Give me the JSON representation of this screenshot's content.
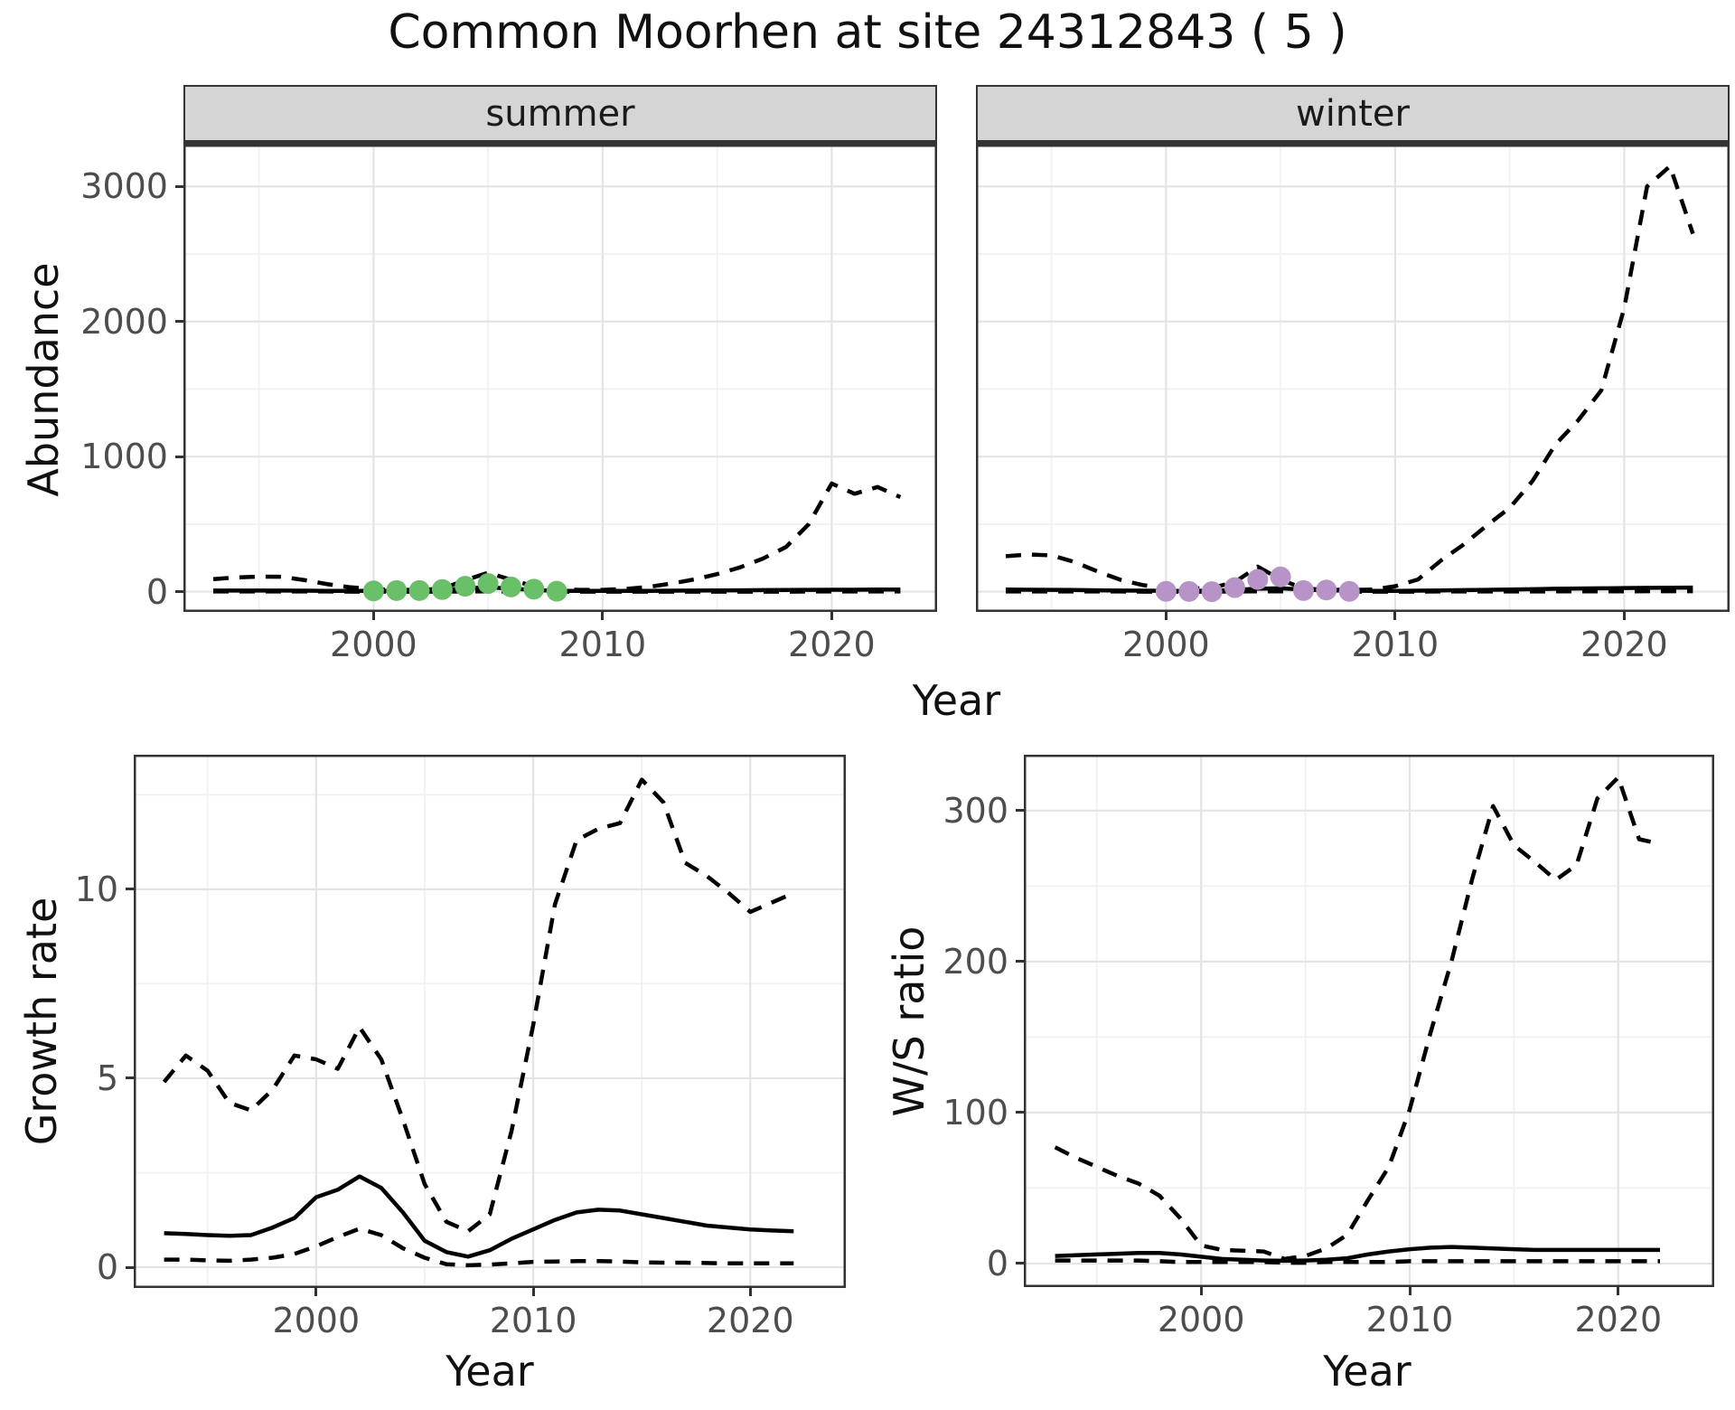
{
  "title": "Common Moorhen at site 24312843 ( 5 )",
  "facets": [
    "summer",
    "winter"
  ],
  "labels": {
    "abundance": "Abundance",
    "year": "Year",
    "growth_rate": "Growth rate",
    "ws_ratio": "W/S ratio"
  },
  "colors": {
    "summer_points": "#6abf69",
    "winter_points": "#b793c7",
    "line": "#000000",
    "grid_major": "#e4e4e4",
    "grid_minor": "#f1f1f1",
    "panel_border": "#333333",
    "strip_bg": "#d5d5d5",
    "tick_text": "#4d4d4d"
  },
  "chart_data": [
    {
      "type": "line",
      "id": "abundance-summer",
      "facet": "summer",
      "ylabel": "Abundance",
      "xlabel": "Year",
      "xlim": [
        1991.7,
        2024.6
      ],
      "ylim": [
        -150,
        3310
      ],
      "xticks": [
        2000,
        2010,
        2020
      ],
      "xminor": [
        1995,
        2005,
        2015
      ],
      "yticks": [
        0,
        1000,
        2000,
        3000
      ],
      "yminor": [
        500,
        1500,
        2500
      ],
      "show_ytick_labels": true,
      "x": [
        1993,
        1994,
        1995,
        1996,
        1997,
        1998,
        1999,
        2000,
        2001,
        2002,
        2003,
        2004,
        2005,
        2006,
        2007,
        2008,
        2009,
        2010,
        2011,
        2012,
        2013,
        2014,
        2015,
        2016,
        2017,
        2018,
        2019,
        2020,
        2021,
        2022,
        2023
      ],
      "series": [
        {
          "name": "index",
          "style": "solid",
          "values": [
            8,
            8,
            8,
            8,
            7,
            6,
            6,
            6,
            7,
            8,
            12,
            25,
            32,
            22,
            12,
            6,
            5,
            5,
            5,
            6,
            7,
            8,
            9,
            10,
            11,
            12,
            13,
            14,
            14,
            15,
            15
          ]
        },
        {
          "name": "upper_ci",
          "style": "dashed",
          "values": [
            92,
            105,
            112,
            110,
            85,
            55,
            32,
            18,
            13,
            13,
            22,
            85,
            140,
            88,
            40,
            18,
            13,
            13,
            20,
            35,
            60,
            90,
            130,
            180,
            245,
            330,
            500,
            800,
            725,
            775,
            700
          ]
        },
        {
          "name": "lower_ci",
          "style": "dashed",
          "values": [
            1,
            1,
            1,
            1,
            1,
            1,
            0,
            0,
            0,
            0,
            0,
            1,
            2,
            1,
            0,
            0,
            0,
            0,
            0,
            0,
            0,
            0,
            0,
            0,
            0,
            0,
            1,
            1,
            1,
            1,
            1
          ]
        }
      ],
      "points": {
        "name": "observed-counts",
        "color": "#6abf69",
        "x": [
          2000,
          2001,
          2002,
          2003,
          2004,
          2005,
          2006,
          2007,
          2008
        ],
        "y": [
          5,
          8,
          8,
          15,
          40,
          60,
          35,
          18,
          3
        ]
      }
    },
    {
      "type": "line",
      "id": "abundance-winter",
      "facet": "winter",
      "ylabel": "Abundance",
      "xlabel": "Year",
      "xlim": [
        1991.7,
        2024.6
      ],
      "ylim": [
        -150,
        3310
      ],
      "xticks": [
        2000,
        2010,
        2020
      ],
      "xminor": [
        1995,
        2005,
        2015
      ],
      "yticks": [
        0,
        1000,
        2000,
        3000
      ],
      "yminor": [
        500,
        1500,
        2500
      ],
      "show_ytick_labels": false,
      "x": [
        1993,
        1994,
        1995,
        1996,
        1997,
        1998,
        1999,
        2000,
        2001,
        2002,
        2003,
        2004,
        2005,
        2006,
        2007,
        2008,
        2009,
        2010,
        2011,
        2012,
        2013,
        2014,
        2015,
        2016,
        2017,
        2018,
        2019,
        2020,
        2021,
        2022,
        2023
      ],
      "series": [
        {
          "name": "index",
          "style": "solid",
          "values": [
            15,
            14,
            13,
            12,
            10,
            8,
            7,
            6,
            6,
            7,
            12,
            22,
            25,
            15,
            10,
            7,
            6,
            6,
            7,
            9,
            11,
            13,
            16,
            18,
            21,
            23,
            25,
            27,
            28,
            29,
            30
          ]
        },
        {
          "name": "upper_ci",
          "style": "dashed",
          "values": [
            262,
            275,
            268,
            220,
            150,
            88,
            48,
            26,
            22,
            28,
            70,
            185,
            90,
            22,
            15,
            12,
            15,
            40,
            90,
            230,
            350,
            490,
            620,
            820,
            1090,
            1270,
            1490,
            2100,
            3000,
            3150,
            2650
          ]
        },
        {
          "name": "lower_ci",
          "style": "dashed",
          "values": [
            1,
            1,
            1,
            1,
            1,
            1,
            0,
            0,
            0,
            0,
            1,
            2,
            2,
            1,
            0,
            0,
            0,
            0,
            0,
            1,
            1,
            1,
            1,
            1,
            2,
            2,
            2,
            2,
            3,
            3,
            3
          ]
        }
      ],
      "points": {
        "name": "observed-counts",
        "color": "#b793c7",
        "x": [
          2000,
          2001,
          2002,
          2003,
          2004,
          2005,
          2006,
          2007,
          2008
        ],
        "y": [
          2,
          1,
          0,
          30,
          90,
          110,
          8,
          12,
          2
        ]
      }
    },
    {
      "type": "line",
      "id": "growth-rate",
      "ylabel": "Growth rate",
      "xlabel": "Year",
      "xlim": [
        1991.6,
        2024.4
      ],
      "ylim": [
        -0.55,
        13.56
      ],
      "xticks": [
        2000,
        2010,
        2020
      ],
      "xminor": [
        1995,
        2005,
        2015
      ],
      "yticks": [
        0,
        5,
        10
      ],
      "yminor": [
        2.5,
        7.5,
        12.5
      ],
      "show_ytick_labels": true,
      "x": [
        1993,
        1994,
        1995,
        1996,
        1997,
        1998,
        1999,
        2000,
        2001,
        2002,
        2003,
        2004,
        2005,
        2006,
        2007,
        2008,
        2009,
        2010,
        2011,
        2012,
        2013,
        2014,
        2015,
        2016,
        2017,
        2018,
        2019,
        2020,
        2021,
        2022
      ],
      "series": [
        {
          "name": "mean",
          "style": "solid",
          "values": [
            0.9,
            0.88,
            0.85,
            0.83,
            0.85,
            1.05,
            1.3,
            1.85,
            2.05,
            2.4,
            2.1,
            1.45,
            0.7,
            0.4,
            0.28,
            0.45,
            0.75,
            1.0,
            1.25,
            1.45,
            1.52,
            1.5,
            1.4,
            1.3,
            1.2,
            1.1,
            1.05,
            1.0,
            0.97,
            0.95
          ]
        },
        {
          "name": "upper_ci",
          "style": "dashed",
          "values": [
            4.9,
            5.6,
            5.2,
            4.35,
            4.15,
            4.7,
            5.6,
            5.5,
            5.25,
            6.35,
            5.5,
            3.9,
            2.2,
            1.2,
            0.95,
            1.4,
            3.6,
            6.4,
            9.6,
            11.3,
            11.6,
            11.75,
            12.9,
            12.3,
            10.7,
            10.35,
            9.9,
            9.4,
            9.65,
            9.9
          ]
        },
        {
          "name": "lower_ci",
          "style": "dashed",
          "values": [
            0.2,
            0.2,
            0.18,
            0.17,
            0.2,
            0.25,
            0.35,
            0.55,
            0.8,
            1.02,
            0.85,
            0.5,
            0.25,
            0.08,
            0.05,
            0.07,
            0.1,
            0.14,
            0.15,
            0.16,
            0.16,
            0.15,
            0.13,
            0.12,
            0.12,
            0.11,
            0.1,
            0.1,
            0.1,
            0.1
          ]
        }
      ],
      "points": null
    },
    {
      "type": "line",
      "id": "ws-ratio",
      "ylabel": "W/S ratio",
      "xlabel": "Year",
      "xlim": [
        1991.5,
        2024.6
      ],
      "ylim": [
        -15.6,
        337
      ],
      "xticks": [
        2000,
        2010,
        2020
      ],
      "xminor": [
        1995,
        2005,
        2015
      ],
      "yticks": [
        0,
        100,
        200,
        300
      ],
      "yminor": [
        50,
        150,
        250
      ],
      "show_ytick_labels": true,
      "x": [
        1993,
        1994,
        1995,
        1996,
        1997,
        1998,
        1999,
        2000,
        2001,
        2002,
        2003,
        2004,
        2005,
        2006,
        2007,
        2008,
        2009,
        2010,
        2011,
        2012,
        2013,
        2014,
        2015,
        2016,
        2017,
        2018,
        2019,
        2020,
        2021,
        2022
      ],
      "series": [
        {
          "name": "mean",
          "style": "solid",
          "values": [
            5,
            5.5,
            6,
            6.5,
            7,
            7,
            6,
            4.5,
            3,
            2.5,
            2,
            1.8,
            2,
            2.5,
            3.5,
            6,
            8,
            9.5,
            10.5,
            11,
            10.5,
            10,
            9.5,
            9,
            9,
            9,
            9,
            9,
            9,
            9
          ]
        },
        {
          "name": "upper_ci",
          "style": "dashed",
          "values": [
            77,
            70,
            64,
            58,
            53,
            45,
            30,
            12,
            9,
            8.5,
            8,
            3,
            5,
            10,
            19,
            42,
            64,
            102,
            153,
            200,
            255,
            303,
            277,
            266,
            254,
            264,
            308,
            322,
            281,
            278
          ]
        },
        {
          "name": "lower_ci",
          "style": "dashed",
          "values": [
            2,
            2,
            2,
            2,
            2,
            1.5,
            1,
            1,
            1,
            1,
            1,
            0.5,
            0.5,
            1,
            1,
            1,
            1,
            1.5,
            1.5,
            1.5,
            1.5,
            1.5,
            1.5,
            1.5,
            1.5,
            1.5,
            1.5,
            1.5,
            1.5,
            1.5
          ]
        }
      ],
      "points": null
    }
  ]
}
